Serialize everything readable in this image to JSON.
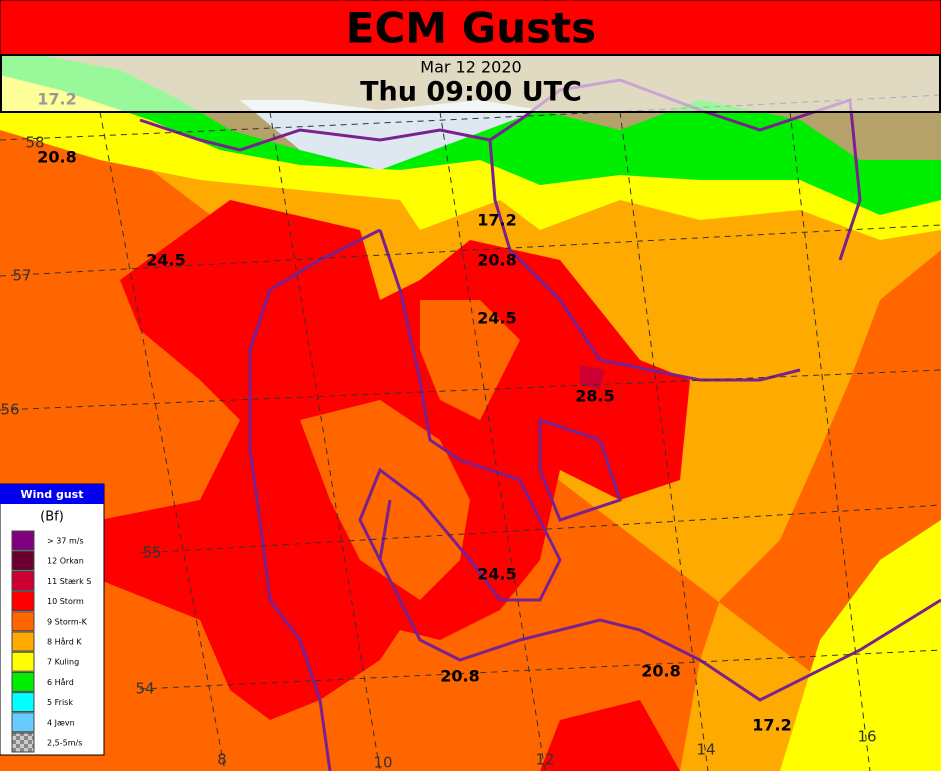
{
  "header": {
    "title": "ECM Gusts",
    "date": "Mar 12 2020",
    "time": "Thu 09:00 UTC"
  },
  "map": {
    "contour_labels": [
      "20.8",
      "17.2",
      "24.5",
      "17.2",
      "20.8",
      "24.5",
      "28.5",
      "24.5",
      "20.8",
      "20.8",
      "17.2"
    ],
    "lat_labels": [
      "58",
      "57",
      "56",
      "55",
      "54"
    ],
    "lon_labels": [
      "8",
      "10",
      "12",
      "14",
      "16"
    ]
  },
  "legend": {
    "title": "Wind gust",
    "unit": "(Bf)",
    "items": [
      {
        "label": "> 37 m/s",
        "color": "#800080"
      },
      {
        "label": "12 Orkan",
        "color": "#6b0030"
      },
      {
        "label": "11 Stærk S",
        "color": "#cc0033"
      },
      {
        "label": "10 Storm",
        "color": "#ff0000"
      },
      {
        "label": "9 Storm-K",
        "color": "#ff6600"
      },
      {
        "label": "8 Hård K",
        "color": "#ffaa00"
      },
      {
        "label": "7 Kuling",
        "color": "#ffff00"
      },
      {
        "label": "6 Hård",
        "color": "#00ee00"
      },
      {
        "label": "5 Frisk",
        "color": "#00ffff"
      },
      {
        "label": "4 Jævn",
        "color": "#66ccff"
      },
      {
        "label": "2,5-5m/s",
        "color": "#999999"
      }
    ]
  }
}
